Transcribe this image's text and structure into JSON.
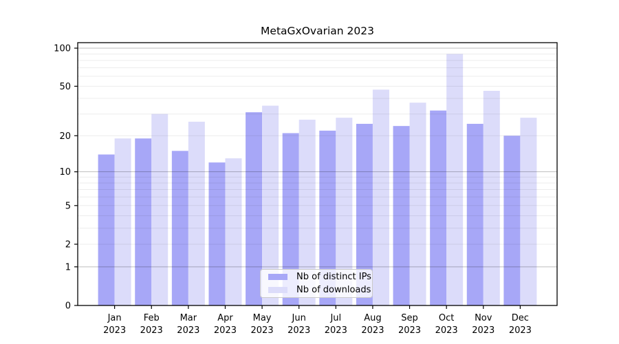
{
  "chart_data": {
    "type": "bar",
    "title": "MetaGxOvarian 2023",
    "categories": [
      "Jan",
      "Feb",
      "Mar",
      "Apr",
      "May",
      "Jun",
      "Jul",
      "Aug",
      "Sep",
      "Oct",
      "Nov",
      "Dec"
    ],
    "year_label": "2023",
    "series": [
      {
        "name": "Nb of distinct IPs",
        "color": "#a7a7f7",
        "values": [
          14,
          19,
          15,
          12,
          31,
          21,
          22,
          25,
          24,
          32,
          25,
          20
        ]
      },
      {
        "name": "Nb of downloads",
        "color": "#dcdcfa",
        "values": [
          19,
          30,
          26,
          13,
          35,
          27,
          28,
          47,
          37,
          90,
          46,
          28
        ]
      }
    ],
    "yscale": "log10(1+x)",
    "ylim": [
      0,
      100
    ],
    "y_tick_labels": [
      0,
      1,
      2,
      5,
      10,
      20,
      50,
      100
    ],
    "y_major_gridlines": [
      1,
      10,
      100
    ],
    "y_minor_gridlines": [
      2,
      3,
      4,
      5,
      6,
      7,
      8,
      9,
      20,
      30,
      40,
      50,
      60,
      70,
      80,
      90
    ],
    "grid": true,
    "legend_position": "bottom-center",
    "colors": {
      "spine": "#000000",
      "major_grid": "rgba(0,0,0,0.26)",
      "minor_grid": "rgba(0,0,0,0.075)",
      "background": "#ffffff"
    }
  }
}
